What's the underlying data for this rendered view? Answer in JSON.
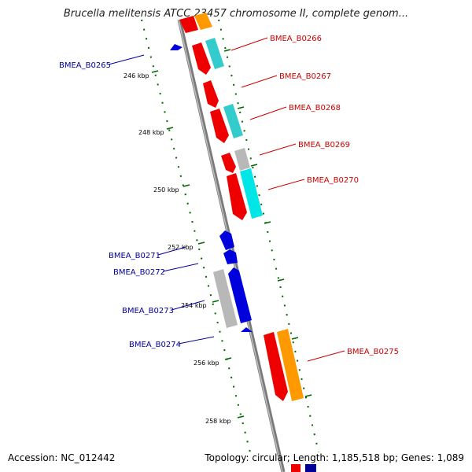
{
  "title": "Brucella melitensis ATCC 23457 chromosome II, complete genom...",
  "footer": {
    "accession": "Accession: NC_012442",
    "stats": "Topology: circular; Length: 1,185,518 bp; Genes: 1,089"
  },
  "colors": {
    "backbone": "#888888",
    "forward_label": "#cc0000",
    "reverse_label": "#000099",
    "tick": "#006600",
    "red": "#ee0000",
    "cyan": "#33cccc",
    "gray": "#b8b8b8",
    "blue": "#0000dd",
    "orange": "#ff9900"
  },
  "kbp_ticks": [
    {
      "label": "246 kbp"
    },
    {
      "label": "248 kbp"
    },
    {
      "label": "250 kbp"
    },
    {
      "label": "252 kbp"
    },
    {
      "label": "254 kbp"
    },
    {
      "label": "256 kbp"
    },
    {
      "label": "258 kbp"
    }
  ],
  "gene_labels": [
    {
      "name": "BMEA_B0265",
      "strand": "reverse"
    },
    {
      "name": "BMEA_B0266",
      "strand": "forward"
    },
    {
      "name": "BMEA_B0267",
      "strand": "forward"
    },
    {
      "name": "BMEA_B0268",
      "strand": "forward"
    },
    {
      "name": "BMEA_B0269",
      "strand": "forward"
    },
    {
      "name": "BMEA_B0270",
      "strand": "forward"
    },
    {
      "name": "BMEA_B0271",
      "strand": "reverse"
    },
    {
      "name": "BMEA_B0272",
      "strand": "reverse"
    },
    {
      "name": "BMEA_B0273",
      "strand": "reverse"
    },
    {
      "name": "BMEA_B0274",
      "strand": "reverse"
    },
    {
      "name": "BMEA_B0275",
      "strand": "forward"
    }
  ]
}
